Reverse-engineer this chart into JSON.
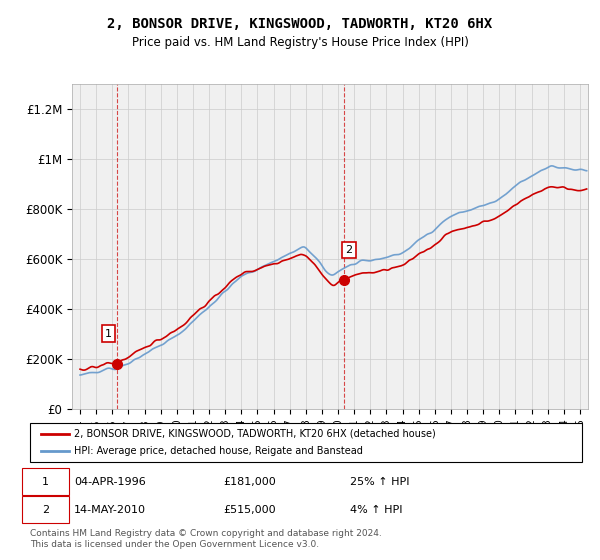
{
  "title": "2, BONSOR DRIVE, KINGSWOOD, TADWORTH, KT20 6HX",
  "subtitle": "Price paid vs. HM Land Registry's House Price Index (HPI)",
  "sale1_date": 1996.26,
  "sale1_price": 181000,
  "sale1_label": "1",
  "sale2_date": 2010.37,
  "sale2_price": 515000,
  "sale2_label": "2",
  "legend_line1": "2, BONSOR DRIVE, KINGSWOOD, TADWORTH, KT20 6HX (detached house)",
  "legend_line2": "HPI: Average price, detached house, Reigate and Banstead",
  "table_row1": [
    "1",
    "04-APR-1996",
    "£181,000",
    "25% ↑ HPI"
  ],
  "table_row2": [
    "2",
    "14-MAY-2010",
    "£515,000",
    "4% ↑ HPI"
  ],
  "footnote": "Contains HM Land Registry data © Crown copyright and database right 2024.\nThis data is licensed under the Open Government Licence v3.0.",
  "hpi_color": "#6699cc",
  "price_color": "#cc0000",
  "bg_hatch_color": "#e8e8e8",
  "ylim_max": 1300000,
  "xlim_min": 1993.5,
  "xlim_max": 2025.5
}
